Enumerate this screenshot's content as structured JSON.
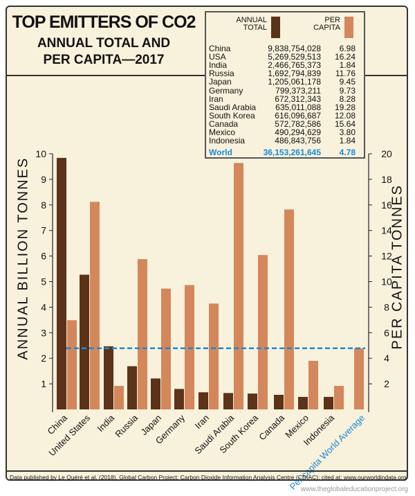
{
  "title": "TOP EMITTERS OF CO2",
  "subtitle_line1": "ANNUAL TOTAL AND",
  "subtitle_line2": "PER CAPITA—2017",
  "table": {
    "header_annual_line1": "ANNUAL",
    "header_annual_line2": "TOTAL",
    "header_per_line1": "PER",
    "header_per_line2": "CAPITA",
    "rows": [
      {
        "name": "China",
        "annual": "9,838,754,028",
        "per": "6.98"
      },
      {
        "name": "USA",
        "annual": "5,269,529,513",
        "per": "16.24"
      },
      {
        "name": "India",
        "annual": "2,466,765,373",
        "per": "1.84"
      },
      {
        "name": "Russia",
        "annual": "1,692,794,839",
        "per": "11.76"
      },
      {
        "name": "Japan",
        "annual": "1,205,061,178",
        "per": "9.45"
      },
      {
        "name": "Germany",
        "annual": "799,373,211",
        "per": "9.73"
      },
      {
        "name": "Iran",
        "annual": "672,312,343",
        "per": "8.28"
      },
      {
        "name": "Saudi Arabia",
        "annual": "635,011,088",
        "per": "19.28"
      },
      {
        "name": "South Korea",
        "annual": "616,096,687",
        "per": "12.08"
      },
      {
        "name": "Canada",
        "annual": "572,782,586",
        "per": "15.64"
      },
      {
        "name": "Mexico",
        "annual": "490,294,629",
        "per": "3.80"
      },
      {
        "name": "Indonesia",
        "annual": "486,843,756",
        "per": "1.84"
      }
    ],
    "world": {
      "name": "World",
      "annual": "36,153,261,645",
      "per": "4.78"
    }
  },
  "colors": {
    "annual": "#5c3219",
    "per_capita": "#d4875a",
    "world": "#1a8ad4",
    "background": "#f8f1dc"
  },
  "chart_data": {
    "type": "bar",
    "categories": [
      "China",
      "United States",
      "India",
      "Russia",
      "Japan",
      "Germany",
      "Iran",
      "Saudi Arabia",
      "South Korea",
      "Canada",
      "Mexico",
      "Indonesia"
    ],
    "world_category": "Per capita World Average",
    "series": [
      {
        "name": "ANNUAL TOTAL",
        "axis": "left",
        "values": [
          9.84,
          5.27,
          2.47,
          1.69,
          1.21,
          0.8,
          0.67,
          0.64,
          0.62,
          0.57,
          0.49,
          0.49
        ]
      },
      {
        "name": "PER CAPITA",
        "axis": "right",
        "values": [
          6.98,
          16.24,
          1.84,
          11.76,
          9.45,
          9.73,
          8.28,
          19.28,
          12.08,
          15.64,
          3.8,
          1.84
        ]
      }
    ],
    "world_per_capita": 4.78,
    "ylabel_left": "ANNUAL BILLION TONNES",
    "ylabel_right": "PER CAPITA TONNES",
    "ylim_left": [
      0,
      10
    ],
    "ylim_right": [
      0,
      20
    ],
    "yticks_left": [
      "1",
      "2",
      "3",
      "4",
      "5",
      "6",
      "7",
      "8",
      "9",
      "10"
    ],
    "yticks_right": [
      "2",
      "4",
      "6",
      "8",
      "10",
      "12",
      "14",
      "16",
      "18",
      "20"
    ],
    "reference_line": "dashed"
  },
  "footer": "Data published by Le Quéré et al. (2018). Global Carbon Project; Carbon Dioxide Information Analysis Centre (CDIAC); cited at: www.ourworldindata.org",
  "site": "www.theglobaleducationproject.org"
}
